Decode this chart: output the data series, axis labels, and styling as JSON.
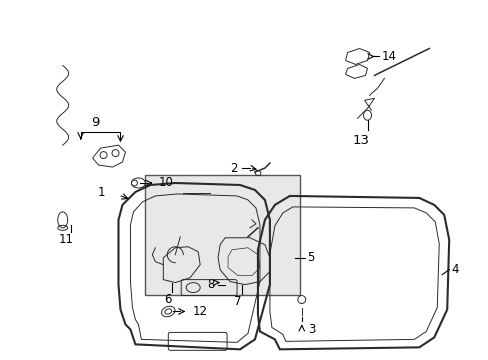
{
  "background_color": "#ffffff",
  "line_color": "#2a2a2a",
  "label_color": "#000000",
  "fig_width": 4.89,
  "fig_height": 3.6,
  "dpi": 100,
  "font_size": 8.5,
  "inset_bg": "#e8e8e8",
  "label_line_color": "#000000"
}
